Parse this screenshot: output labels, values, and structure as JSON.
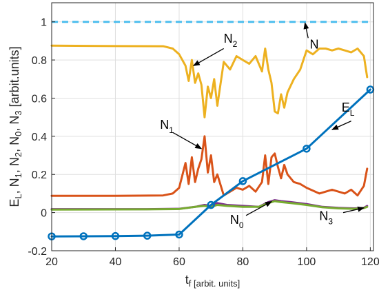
{
  "chart_data": {
    "type": "line",
    "xlabel": "t_f [arbit. units]",
    "ylabel": "E_L, N_1, N_2, N_0, N_3 [arbit.units]",
    "xlim": [
      20,
      121
    ],
    "ylim": [
      -0.2,
      1.1
    ],
    "x_ticks": [
      "20",
      "40",
      "60",
      "80",
      "100",
      "120"
    ],
    "y_ticks": [
      "-0.2",
      "0",
      "0.2",
      "0.4",
      "0.6",
      "0.8",
      "1"
    ],
    "grid": true,
    "legend": "none",
    "series": [
      {
        "name": "N",
        "color": "#4DBEEE",
        "style": "dashed",
        "x": [
          20,
          120
        ],
        "y": [
          1.0,
          1.0
        ]
      },
      {
        "name": "N_2",
        "color": "#EDB120",
        "style": "solid",
        "x": [
          20,
          40,
          55,
          58,
          60,
          62,
          63,
          64,
          65,
          66,
          67,
          68,
          69,
          70,
          71,
          72,
          74,
          76,
          78,
          80,
          82,
          84,
          86,
          87,
          88,
          89,
          90,
          91,
          92,
          93,
          94,
          96,
          98,
          100,
          102,
          104,
          106,
          108,
          110,
          112,
          114,
          116,
          118,
          119
        ],
        "y": [
          0.875,
          0.873,
          0.872,
          0.86,
          0.83,
          0.77,
          0.69,
          0.8,
          0.68,
          0.73,
          0.67,
          0.5,
          0.66,
          0.6,
          0.7,
          0.56,
          0.79,
          0.75,
          0.82,
          0.8,
          0.78,
          0.82,
          0.74,
          0.86,
          0.75,
          0.68,
          0.53,
          0.52,
          0.62,
          0.55,
          0.63,
          0.7,
          0.75,
          0.85,
          0.83,
          0.86,
          0.86,
          0.85,
          0.86,
          0.85,
          0.84,
          0.86,
          0.82,
          0.71
        ]
      },
      {
        "name": "N_1",
        "color": "#D95319",
        "style": "solid",
        "x": [
          20,
          40,
          55,
          58,
          60,
          62,
          63,
          64,
          65,
          66,
          67,
          68,
          69,
          70,
          71,
          72,
          74,
          76,
          78,
          80,
          82,
          84,
          86,
          87,
          88,
          89,
          90,
          91,
          92,
          93,
          94,
          96,
          98,
          100,
          104,
          108,
          112,
          114,
          116,
          118,
          119
        ],
        "y": [
          0.088,
          0.088,
          0.09,
          0.1,
          0.13,
          0.26,
          0.15,
          0.29,
          0.16,
          0.23,
          0.28,
          0.4,
          0.21,
          0.3,
          0.16,
          0.2,
          0.09,
          0.11,
          0.13,
          0.12,
          0.14,
          0.11,
          0.16,
          0.3,
          0.15,
          0.29,
          0.31,
          0.24,
          0.18,
          0.25,
          0.2,
          0.16,
          0.15,
          0.13,
          0.1,
          0.12,
          0.1,
          0.12,
          0.09,
          0.14,
          0.23
        ]
      },
      {
        "name": "N_0",
        "color": "#7E2F8E",
        "style": "solid",
        "x": [
          20,
          50,
          60,
          65,
          68,
          70,
          72,
          75,
          80,
          85,
          88,
          90,
          92,
          95,
          100,
          105,
          110,
          115,
          118,
          119
        ],
        "y": [
          0.018,
          0.018,
          0.02,
          0.03,
          0.04,
          0.035,
          0.05,
          0.04,
          0.035,
          0.03,
          0.055,
          0.065,
          0.06,
          0.055,
          0.045,
          0.03,
          0.025,
          0.022,
          0.025,
          0.035
        ]
      },
      {
        "name": "N_3",
        "color": "#77AC30",
        "style": "solid",
        "x": [
          20,
          50,
          60,
          65,
          68,
          70,
          72,
          75,
          80,
          85,
          88,
          90,
          92,
          95,
          100,
          105,
          110,
          115,
          118,
          119
        ],
        "y": [
          0.016,
          0.017,
          0.019,
          0.03,
          0.035,
          0.03,
          0.04,
          0.035,
          0.03,
          0.03,
          0.05,
          0.06,
          0.055,
          0.05,
          0.04,
          0.028,
          0.022,
          0.02,
          0.024,
          0.03
        ]
      },
      {
        "name": "E_L",
        "color": "#0072BD",
        "style": "solid-markers",
        "x": [
          20,
          30,
          40,
          50,
          60,
          70,
          80,
          100,
          120
        ],
        "y": [
          -0.125,
          -0.124,
          -0.123,
          -0.121,
          -0.115,
          0.04,
          0.165,
          0.335,
          0.645
        ]
      }
    ],
    "annotations": [
      {
        "base": "N",
        "sub": "",
        "text_x": 101,
        "text_y": 0.86,
        "arrow_from": [
          100.5,
          0.915
        ],
        "arrow_to": [
          99.5,
          0.995
        ]
      },
      {
        "base": "N",
        "sub": "2",
        "text_x": 74,
        "text_y": 0.89,
        "arrow_from": [
          74,
          0.86
        ],
        "arrow_to": [
          64.5,
          0.77
        ]
      },
      {
        "base": "E",
        "sub": "L",
        "text_x": 111,
        "text_y": 0.53,
        "arrow_from": [
          114,
          0.48
        ],
        "arrow_to": [
          108,
          0.435
        ]
      },
      {
        "base": "N",
        "sub": "1",
        "text_x": 54,
        "text_y": 0.44,
        "arrow_from": [
          58,
          0.42
        ],
        "arrow_to": [
          67,
          0.335
        ]
      },
      {
        "base": "N",
        "sub": "0",
        "text_x": 76,
        "text_y": -0.06,
        "arrow_from": [
          81,
          -0.015
        ],
        "arrow_to": [
          89,
          0.058
        ]
      },
      {
        "base": "N",
        "sub": "3",
        "text_x": 104,
        "text_y": -0.04,
        "arrow_from": [
          111.5,
          0.0
        ],
        "arrow_to": [
          118,
          0.025
        ]
      }
    ]
  }
}
